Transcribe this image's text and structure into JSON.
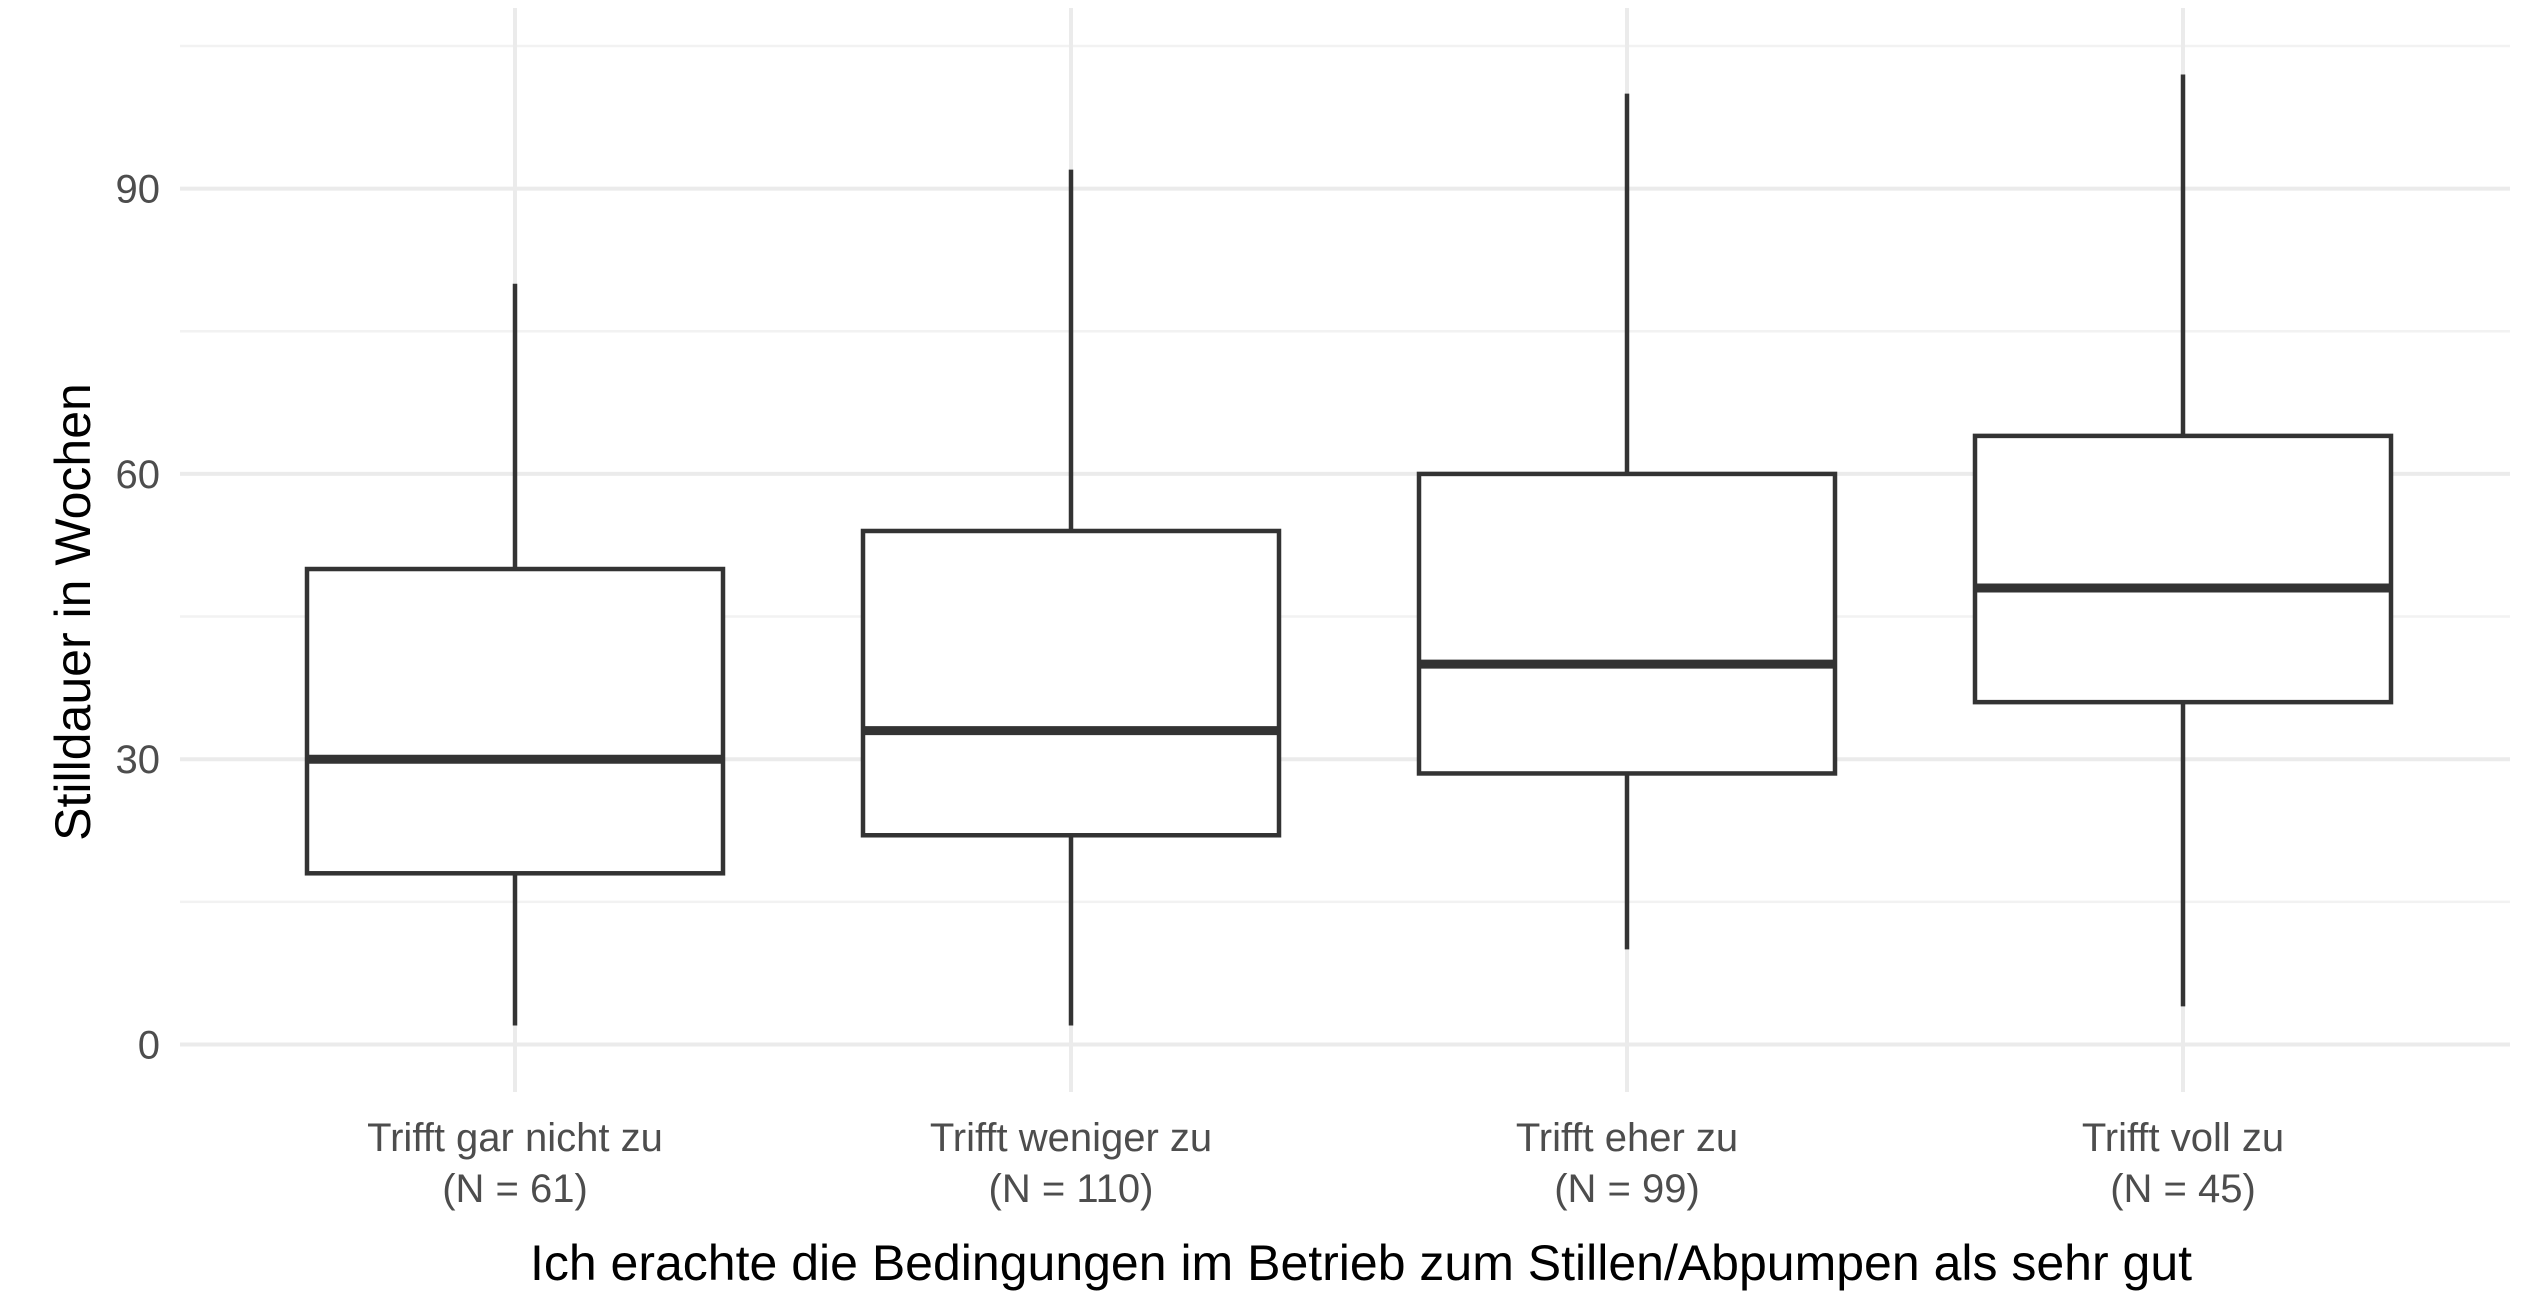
{
  "chart_data": {
    "type": "box",
    "xlabel": "Ich erachte die Bedingungen im Betrieb zum Stillen/Abpumpen als sehr gut",
    "ylabel": "Stilldauer in Wochen",
    "ylim": [
      -5,
      109
    ],
    "yticks": [
      0,
      30,
      60,
      90
    ],
    "grid": true,
    "categories": [
      {
        "label": "Trifft gar nicht zu",
        "n_label": "(N = 61)"
      },
      {
        "label": "Trifft weniger zu",
        "n_label": "(N = 110)"
      },
      {
        "label": "Trifft eher zu",
        "n_label": "(N = 99)"
      },
      {
        "label": "Trifft voll zu",
        "n_label": "(N = 45)"
      }
    ],
    "boxes": [
      {
        "whisker_low": 2,
        "q1": 18,
        "median": 30,
        "q3": 50,
        "whisker_high": 80
      },
      {
        "whisker_low": 2,
        "q1": 22,
        "median": 33,
        "q3": 54,
        "whisker_high": 92
      },
      {
        "whisker_low": 10,
        "q1": 28.5,
        "median": 40,
        "q3": 60,
        "whisker_high": 100
      },
      {
        "whisker_low": 4,
        "q1": 36,
        "median": 48,
        "q3": 64,
        "whisker_high": 102
      }
    ],
    "colors": {
      "box_stroke": "#333333",
      "box_fill": "#ffffff",
      "grid": "#ebebeb"
    }
  }
}
